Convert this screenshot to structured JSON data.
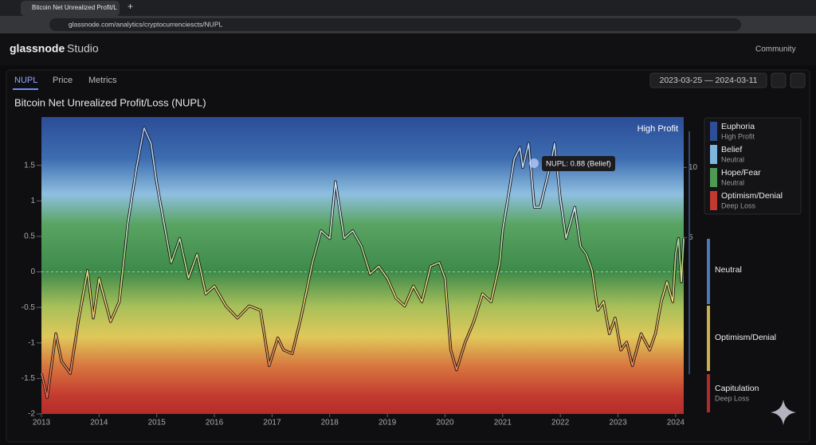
{
  "browser": {
    "tab_title": "Bitcoin Net Unrealized Profit/L",
    "url": "glassnode.com/analytics/cryptocurrenciescts/NUPL"
  },
  "app": {
    "brand": "glassnode",
    "product": "Studio",
    "account": "Community",
    "tabs": [
      "NUPL",
      "Price",
      "Metrics"
    ],
    "date_range": "2023-03-25 — 2024-03-11"
  },
  "chart_data": {
    "type": "line",
    "title": "Bitcoin Net Unrealized Profit/Loss (NUPL)",
    "x": [
      2013.0,
      2013.1,
      2013.25,
      2013.35,
      2013.5,
      2013.65,
      2013.8,
      2013.9,
      2014.0,
      2014.2,
      2014.35,
      2014.5,
      2014.65,
      2014.78,
      2014.9,
      2015.0,
      2015.1,
      2015.25,
      2015.4,
      2015.55,
      2015.7,
      2015.85,
      2016.0,
      2016.2,
      2016.4,
      2016.6,
      2016.8,
      2016.95,
      2017.1,
      2017.2,
      2017.35,
      2017.5,
      2017.7,
      2017.85,
      2018.0,
      2018.1,
      2018.25,
      2018.4,
      2018.55,
      2018.7,
      2018.85,
      2019.0,
      2019.15,
      2019.3,
      2019.45,
      2019.6,
      2019.75,
      2019.9,
      2020.0,
      2020.1,
      2020.2,
      2020.35,
      2020.5,
      2020.65,
      2020.8,
      2020.95,
      2021.0,
      2021.1,
      2021.2,
      2021.3,
      2021.35,
      2021.45,
      2021.55,
      2021.65,
      2021.75,
      2021.85,
      2021.9,
      2022.0,
      2022.1,
      2022.25,
      2022.35,
      2022.45,
      2022.55,
      2022.65,
      2022.75,
      2022.85,
      2022.95,
      2023.05,
      2023.15,
      2023.25,
      2023.4,
      2023.55,
      2023.65,
      2023.75,
      2023.85,
      2023.95,
      2024.0,
      2024.05,
      2024.1,
      2024.14
    ],
    "series": [
      {
        "name": "NUPL",
        "values": [
          -1.43,
          -1.77,
          -0.87,
          -1.26,
          -1.43,
          -0.65,
          0.02,
          -0.65,
          -0.09,
          -0.7,
          -0.42,
          0.69,
          1.47,
          2.03,
          1.81,
          1.25,
          0.8,
          0.13,
          0.47,
          -0.09,
          0.25,
          -0.31,
          -0.2,
          -0.48,
          -0.65,
          -0.48,
          -0.54,
          -1.32,
          -0.93,
          -1.1,
          -1.15,
          -0.65,
          0.13,
          0.58,
          0.47,
          1.27,
          0.47,
          0.58,
          0.36,
          -0.03,
          0.08,
          -0.09,
          -0.37,
          -0.48,
          -0.2,
          -0.42,
          0.08,
          0.13,
          -0.09,
          -1.1,
          -1.38,
          -0.99,
          -0.7,
          -0.31,
          -0.42,
          0.13,
          0.58,
          1.08,
          1.59,
          1.75,
          1.47,
          1.81,
          0.91,
          0.91,
          1.25,
          1.59,
          1.81,
          1.02,
          0.47,
          0.91,
          0.36,
          0.25,
          0.02,
          -0.54,
          -0.42,
          -0.87,
          -0.65,
          -1.1,
          -0.99,
          -1.32,
          -0.87,
          -1.1,
          -0.87,
          -0.42,
          -0.14,
          -0.42,
          0.25,
          0.47,
          -0.14,
          0.47
        ]
      }
    ],
    "xlim": [
      2013,
      2024.14
    ],
    "xticks": [
      2013,
      2014,
      2015,
      2016,
      2017,
      2018,
      2019,
      2020,
      2021,
      2022,
      2023,
      2024
    ],
    "ylim": [
      -2,
      2.18
    ],
    "yticks": [
      -2,
      -1.5,
      -1,
      -0.5,
      0,
      0.5,
      1,
      1.5
    ],
    "y2lim": [
      -7.6,
      13.6
    ],
    "y2ticks": [
      5,
      10
    ],
    "annotations": [
      "High Profit",
      "NUPL: 0.88 (Belief)"
    ],
    "zones": [
      {
        "name": "Euphoria",
        "sub": "High Profit",
        "color": "#2d4f9a"
      },
      {
        "name": "Belief",
        "sub": "Neutral",
        "color": "#7fb6df"
      },
      {
        "name": "Hope/Fear",
        "sub": "Neutral",
        "color": "#4f9a52"
      },
      {
        "name": "Optimism/Denial",
        "sub": "Deep Loss",
        "color": "#c2392f"
      }
    ],
    "colorbar": [
      {
        "label": "Neutral",
        "color": "#4a78b8"
      },
      {
        "label": "Optimism/Denial",
        "color": "#c9b04a"
      },
      {
        "label": "Capitulation",
        "sub": "Deep Loss",
        "color": "#b02c2c"
      }
    ]
  }
}
